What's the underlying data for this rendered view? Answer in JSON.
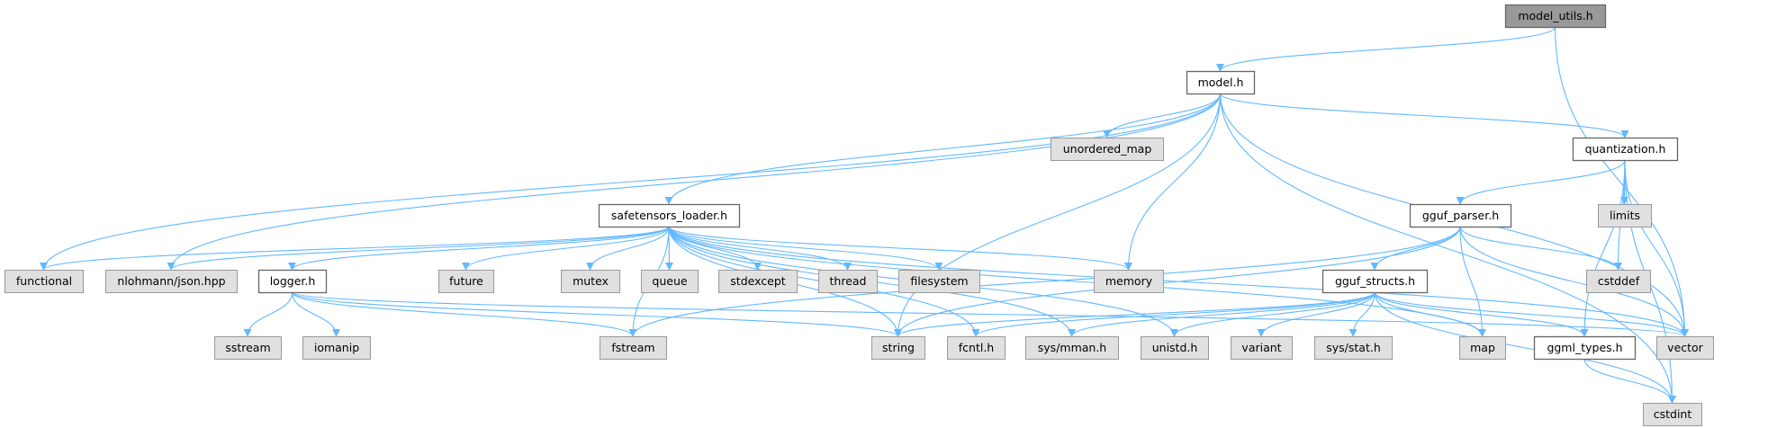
{
  "graph": {
    "colors": {
      "edge": "#63b8ff",
      "root_fill": "#999999",
      "root_stroke": "#666666",
      "local_fill": "#ffffff",
      "local_stroke": "#666666",
      "system_fill": "#e0e0e0",
      "system_stroke": "#999999"
    },
    "nodes": [
      {
        "id": "model_utils",
        "label": "model_utils.h",
        "kind": "root"
      },
      {
        "id": "model",
        "label": "model.h",
        "kind": "local"
      },
      {
        "id": "unordered_map",
        "label": "unordered_map",
        "kind": "system"
      },
      {
        "id": "quantization",
        "label": "quantization.h",
        "kind": "local"
      },
      {
        "id": "safetensors_loader",
        "label": "safetensors_loader.h",
        "kind": "local"
      },
      {
        "id": "gguf_parser",
        "label": "gguf_parser.h",
        "kind": "local"
      },
      {
        "id": "limits",
        "label": "limits",
        "kind": "system"
      },
      {
        "id": "functional",
        "label": "functional",
        "kind": "system"
      },
      {
        "id": "json",
        "label": "nlohmann/json.hpp",
        "kind": "system"
      },
      {
        "id": "logger",
        "label": "logger.h",
        "kind": "local"
      },
      {
        "id": "future",
        "label": "future",
        "kind": "system"
      },
      {
        "id": "mutex",
        "label": "mutex",
        "kind": "system"
      },
      {
        "id": "queue",
        "label": "queue",
        "kind": "system"
      },
      {
        "id": "stdexcept",
        "label": "stdexcept",
        "kind": "system"
      },
      {
        "id": "thread",
        "label": "thread",
        "kind": "system"
      },
      {
        "id": "filesystem",
        "label": "filesystem",
        "kind": "system"
      },
      {
        "id": "memory",
        "label": "memory",
        "kind": "system"
      },
      {
        "id": "gguf_structs",
        "label": "gguf_structs.h",
        "kind": "local"
      },
      {
        "id": "cstddef",
        "label": "cstddef",
        "kind": "system"
      },
      {
        "id": "sstream",
        "label": "sstream",
        "kind": "system"
      },
      {
        "id": "iomanip",
        "label": "iomanip",
        "kind": "system"
      },
      {
        "id": "fstream",
        "label": "fstream",
        "kind": "system"
      },
      {
        "id": "string",
        "label": "string",
        "kind": "system"
      },
      {
        "id": "fcntl",
        "label": "fcntl.h",
        "kind": "system"
      },
      {
        "id": "sys_mman",
        "label": "sys/mman.h",
        "kind": "system"
      },
      {
        "id": "unistd",
        "label": "unistd.h",
        "kind": "system"
      },
      {
        "id": "variant",
        "label": "variant",
        "kind": "system"
      },
      {
        "id": "sys_stat",
        "label": "sys/stat.h",
        "kind": "system"
      },
      {
        "id": "map",
        "label": "map",
        "kind": "system"
      },
      {
        "id": "ggml_types",
        "label": "ggml_types.h",
        "kind": "local"
      },
      {
        "id": "vector",
        "label": "vector",
        "kind": "system"
      },
      {
        "id": "cstdint",
        "label": "cstdint",
        "kind": "system"
      }
    ],
    "edges": [
      [
        "model_utils",
        "model"
      ],
      [
        "model_utils",
        "vector"
      ],
      [
        "model",
        "functional"
      ],
      [
        "model",
        "json"
      ],
      [
        "model",
        "safetensors_loader"
      ],
      [
        "model",
        "unordered_map"
      ],
      [
        "model",
        "memory"
      ],
      [
        "model",
        "string"
      ],
      [
        "model",
        "quantization"
      ],
      [
        "model",
        "vector"
      ],
      [
        "model",
        "cstdint"
      ],
      [
        "quantization",
        "gguf_parser"
      ],
      [
        "quantization",
        "limits"
      ],
      [
        "quantization",
        "cstddef"
      ],
      [
        "quantization",
        "ggml_types"
      ],
      [
        "quantization",
        "vector"
      ],
      [
        "quantization",
        "cstdint"
      ],
      [
        "gguf_parser",
        "fstream"
      ],
      [
        "gguf_parser",
        "string"
      ],
      [
        "gguf_parser",
        "gguf_structs"
      ],
      [
        "gguf_parser",
        "map"
      ],
      [
        "gguf_parser",
        "cstddef"
      ],
      [
        "gguf_parser",
        "vector"
      ],
      [
        "gguf_structs",
        "string"
      ],
      [
        "gguf_structs",
        "fcntl"
      ],
      [
        "gguf_structs",
        "sys_mman"
      ],
      [
        "gguf_structs",
        "unistd"
      ],
      [
        "gguf_structs",
        "variant"
      ],
      [
        "gguf_structs",
        "sys_stat"
      ],
      [
        "gguf_structs",
        "map"
      ],
      [
        "gguf_structs",
        "ggml_types"
      ],
      [
        "gguf_structs",
        "vector"
      ],
      [
        "gguf_structs",
        "cstdint"
      ],
      [
        "ggml_types",
        "cstdint"
      ],
      [
        "safetensors_loader",
        "functional"
      ],
      [
        "safetensors_loader",
        "json"
      ],
      [
        "safetensors_loader",
        "logger"
      ],
      [
        "safetensors_loader",
        "future"
      ],
      [
        "safetensors_loader",
        "mutex"
      ],
      [
        "safetensors_loader",
        "queue"
      ],
      [
        "safetensors_loader",
        "stdexcept"
      ],
      [
        "safetensors_loader",
        "thread"
      ],
      [
        "safetensors_loader",
        "filesystem"
      ],
      [
        "safetensors_loader",
        "memory"
      ],
      [
        "safetensors_loader",
        "vector"
      ],
      [
        "safetensors_loader",
        "map"
      ],
      [
        "safetensors_loader",
        "string"
      ],
      [
        "safetensors_loader",
        "fstream"
      ],
      [
        "safetensors_loader",
        "unistd"
      ],
      [
        "safetensors_loader",
        "fcntl"
      ],
      [
        "safetensors_loader",
        "sys_mman"
      ],
      [
        "logger",
        "sstream"
      ],
      [
        "logger",
        "iomanip"
      ],
      [
        "logger",
        "fstream"
      ],
      [
        "logger",
        "string"
      ],
      [
        "logger",
        "vector"
      ]
    ]
  }
}
